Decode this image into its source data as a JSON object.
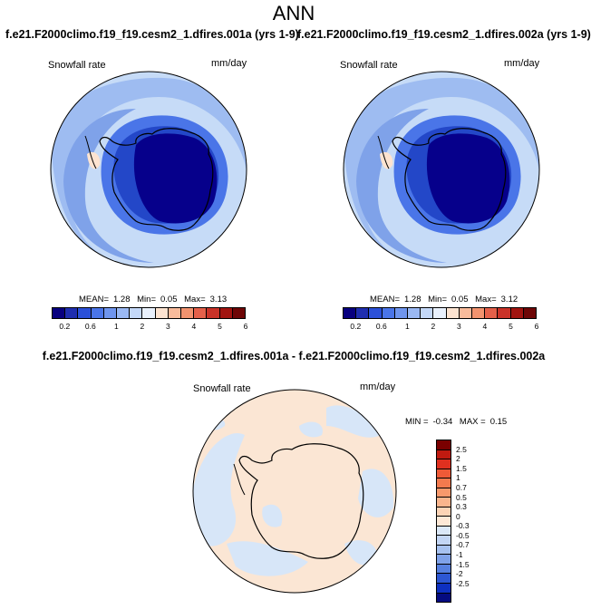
{
  "main_title": "ANN",
  "panels": [
    {
      "case_title": "f.e21.F2000climo.f19_f19.cesm2_1.dfires.001a (yrs 1-9)",
      "variable": "Snowfall rate",
      "units": "mm/day",
      "mean_label": "MEAN=",
      "mean": "1.28",
      "min_label": "Min=",
      "min": "0.05",
      "max_label": "Max=",
      "max": "3.13"
    },
    {
      "case_title": "f.e21.F2000climo.f19_f19.cesm2_1.dfires.002a (yrs 1-9)",
      "variable": "Snowfall rate",
      "units": "mm/day",
      "mean_label": "MEAN=",
      "mean": "1.28",
      "min_label": "Min=",
      "min": "0.05",
      "max_label": "Max=",
      "max": "3.12"
    }
  ],
  "abs_colorbar": {
    "colors": [
      "#08007f",
      "#1f2eb0",
      "#2b50d8",
      "#4a75e8",
      "#6f95ee",
      "#9ab8f3",
      "#c4d8f8",
      "#e8f0fc",
      "#fde3d0",
      "#f9bb9b",
      "#f2936f",
      "#e4604a",
      "#c93228",
      "#a11410",
      "#6e0606"
    ],
    "labels": [
      "0.2",
      "0.6",
      "1",
      "2",
      "3",
      "4",
      "5",
      "6"
    ]
  },
  "difference": {
    "title": "f.e21.F2000climo.f19_f19.cesm2_1.dfires.001a - f.e21.F2000climo.f19_f19.cesm2_1.dfires.002a",
    "variable": "Snowfall rate",
    "units": "mm/day",
    "min_label": "MIN =",
    "min": "-0.34",
    "max_label": "MAX =",
    "max": "0.15",
    "colorbar": {
      "colors": [
        "#7a0000",
        "#c01a10",
        "#e0301f",
        "#ef5a37",
        "#f37a4e",
        "#f7996c",
        "#f9b58d",
        "#fcd4b6",
        "#fde8d6",
        "#dbe8f8",
        "#c3d6f5",
        "#a7c2f0",
        "#7fa2e9",
        "#5680e0",
        "#2d57d3",
        "#0e30c0",
        "#050b80"
      ],
      "labels": [
        "2.5",
        "2",
        "1.5",
        "1",
        "0.7",
        "0.5",
        "0.3",
        "0",
        "-0.3",
        "-0.5",
        "-0.7",
        "-1",
        "-1.5",
        "-2",
        "-2.5"
      ]
    }
  },
  "colors": {
    "map_ring_outer": "#c6dbf7",
    "map_ring_mid": "#8fb0ee",
    "map_ring_inner": "#2d5cd8",
    "map_core": "#05008a",
    "diff_neutral": "#fbe6d4",
    "diff_blue": "#d7e6f8"
  }
}
